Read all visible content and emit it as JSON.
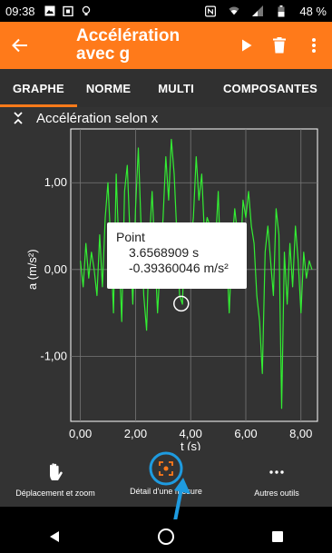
{
  "status_bar": {
    "time": "09:38",
    "battery": "48 %",
    "icons": [
      "image-icon",
      "clipboard-icon",
      "bulb-icon",
      "nfc-icon",
      "wifi-icon",
      "signal-icon",
      "battery-icon"
    ]
  },
  "app_bar": {
    "title_line1": "Accélération",
    "title_line2": "avec g",
    "color": "#ff7a1a"
  },
  "tabs": [
    {
      "label": "GRAPHE",
      "active": true
    },
    {
      "label": "NORME",
      "active": false
    },
    {
      "label": "MULTI",
      "active": false
    },
    {
      "label": "COMPOSANTES",
      "active": false
    }
  ],
  "graph": {
    "title": "Accélération selon x",
    "tooltip": {
      "title": "Point",
      "time": "3.6568909 s",
      "value": "-0.39360046 m/s²"
    }
  },
  "chart_data": {
    "type": "line",
    "xlabel": "t (s)",
    "ylabel": "a (m/s²)",
    "xlim": [
      -0.35,
      8.6
    ],
    "ylim": [
      -1.75,
      1.62
    ],
    "x_ticks": [
      "0,00",
      "2,00",
      "4,00",
      "6,00",
      "8,00"
    ],
    "x_tick_values": [
      0,
      2,
      4,
      6,
      8
    ],
    "y_ticks": [
      "1,00",
      "0,00",
      "-1,00"
    ],
    "y_tick_values": [
      1,
      0,
      -1
    ],
    "grid": true,
    "line_color": "#33ee33",
    "selected_point": {
      "x": 3.6568909,
      "y": -0.39360046
    },
    "series": [
      {
        "x": [
          0,
          0.1,
          0.2,
          0.3,
          0.4,
          0.5,
          0.6,
          0.7,
          0.8,
          0.9,
          1.0,
          1.1,
          1.2,
          1.3,
          1.4,
          1.5,
          1.6,
          1.7,
          1.8,
          1.9,
          2.0,
          2.1,
          2.2,
          2.3,
          2.4,
          2.5,
          2.6,
          2.7,
          2.8,
          2.9,
          3.0,
          3.1,
          3.2,
          3.3,
          3.4,
          3.5,
          3.6,
          3.7,
          3.8,
          3.9,
          4.0,
          4.1,
          4.2,
          4.3,
          4.4,
          4.5,
          4.6,
          4.7,
          4.8,
          4.9,
          5.0,
          5.1,
          5.2,
          5.3,
          5.4,
          5.5,
          5.6,
          5.7,
          5.8,
          5.9,
          6.0,
          6.1,
          6.2,
          6.3,
          6.4,
          6.5,
          6.6,
          6.7,
          6.8,
          6.9,
          7.0,
          7.1,
          7.2,
          7.3,
          7.4,
          7.5,
          7.6,
          7.7,
          7.8,
          7.9,
          8.0,
          8.1,
          8.2,
          8.3,
          8.4
        ],
        "values": [
          0.1,
          -0.2,
          0.3,
          -0.1,
          0.2,
          0.0,
          -0.3,
          0.4,
          -0.2,
          0.6,
          1.0,
          0.3,
          -0.5,
          1.1,
          0.2,
          -0.6,
          0.9,
          1.2,
          0.4,
          -0.4,
          0.7,
          1.4,
          0.5,
          -0.3,
          -0.7,
          0.3,
          0.9,
          0.2,
          -0.5,
          0.1,
          0.6,
          1.3,
          0.8,
          1.5,
          1.1,
          0.4,
          -0.3,
          -0.4,
          0.5,
          -0.2,
          0.3,
          0.6,
          1.3,
          0.8,
          1.1,
          0.4,
          0.6,
          0.5,
          -0.2,
          0.3,
          0.9,
          -0.1,
          0.4,
          0.2,
          -0.5,
          0.3,
          0.7,
          0.4,
          0.1,
          0.8,
          0.6,
          0.9,
          0.5,
          0.3,
          -0.3,
          -0.6,
          -1.2,
          0.2,
          0.5,
          0.1,
          -0.3,
          0.7,
          0.4,
          -1.6,
          0.2,
          -0.4,
          0.3,
          -0.2,
          0.5,
          0.1,
          -0.5,
          0.2,
          -0.1,
          0.1,
          0.0
        ]
      }
    ]
  },
  "tools": [
    {
      "label": "Déplacement et zoom",
      "icon": "hand-icon"
    },
    {
      "label": "Détail d'une mesure",
      "icon": "crosshair-icon",
      "highlight_color": "#1e9be0"
    },
    {
      "label": "Autres outils",
      "icon": "more-dots-icon"
    }
  ],
  "nav": [
    "back-triangle-icon",
    "home-circle-icon",
    "recents-square-icon"
  ]
}
